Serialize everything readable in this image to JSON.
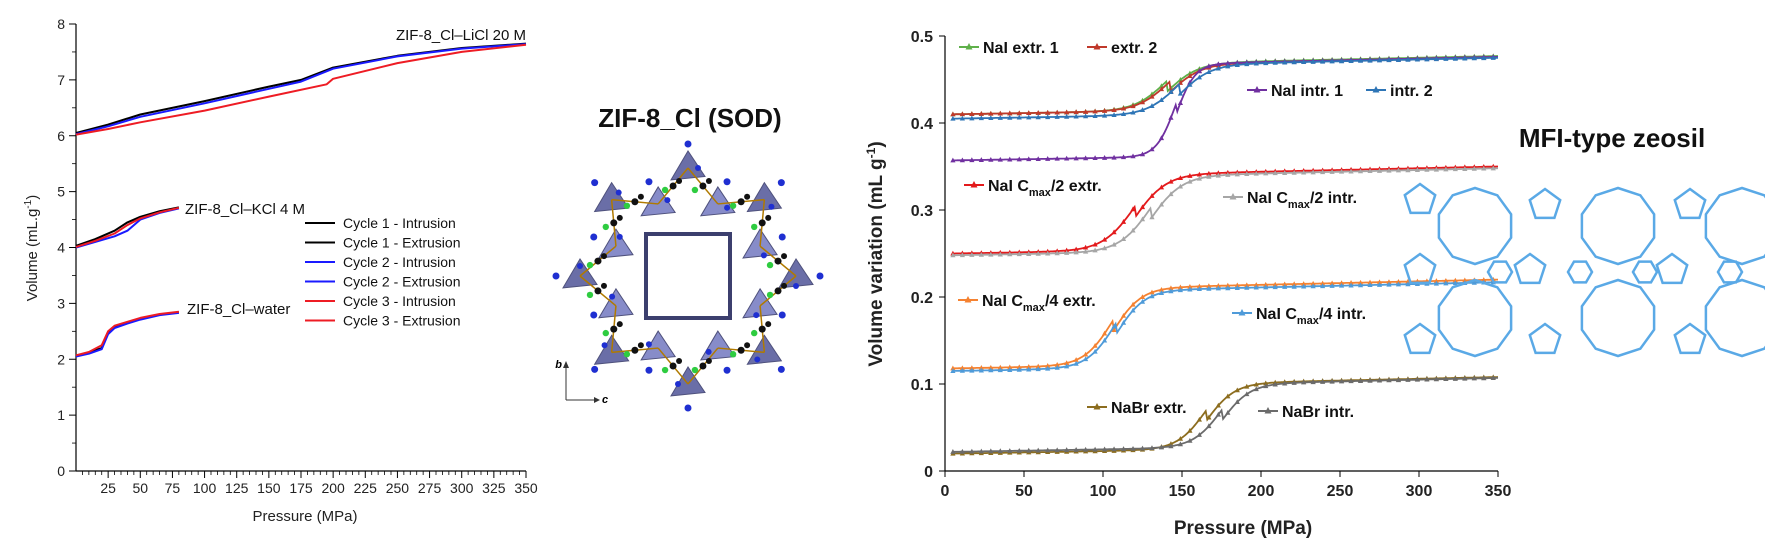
{
  "chart_data": [
    {
      "type": "line",
      "xlabel": "Pressure (MPa)",
      "ylabel": "Volume (mL.g",
      "ylabel_sup": "-1",
      "ylabel_end": ")",
      "xlim": [
        0,
        350
      ],
      "ylim": [
        0,
        8
      ],
      "x_ticks": [
        "25",
        "50",
        "75",
        "100",
        "125",
        "150",
        "175",
        "200",
        "225",
        "250",
        "275",
        "300",
        "325",
        "350"
      ],
      "y_ticks": [
        "0",
        "1",
        "2",
        "3",
        "4",
        "5",
        "6",
        "7",
        "8"
      ],
      "legend": [
        {
          "label": "Cycle 1 - Intrusion",
          "color": "#000000"
        },
        {
          "label": "Cycle 1 - Extrusion",
          "color": "#000000"
        },
        {
          "label": "Cycle 2 - Intrusion",
          "color": "#1a1aff"
        },
        {
          "label": "Cycle 2 - Extrusion",
          "color": "#1a1aff"
        },
        {
          "label": "Cycle 3 - Intrusion",
          "color": "#ee1c24"
        },
        {
          "label": "Cycle 3 - Extrusion",
          "color": "#ee1c24"
        }
      ],
      "annotations": [
        "ZIF-8_Cl–LiCl 20 M",
        "ZIF-8_Cl–KCl 4 M",
        "ZIF-8_Cl–water"
      ],
      "series": [
        {
          "group": "ZIF-8_Cl–LiCl 20 M",
          "color": "#000000",
          "x": [
            0,
            25,
            50,
            100,
            150,
            175,
            200,
            250,
            300,
            350
          ],
          "y": [
            6.05,
            6.2,
            6.38,
            6.62,
            6.88,
            7.0,
            7.22,
            7.43,
            7.57,
            7.65
          ]
        },
        {
          "group": "ZIF-8_Cl–LiCl 20 M",
          "color": "#1a1aff",
          "x": [
            0,
            25,
            50,
            100,
            150,
            175,
            200,
            250,
            300,
            350
          ],
          "y": [
            6.03,
            6.17,
            6.34,
            6.58,
            6.84,
            6.97,
            7.2,
            7.42,
            7.56,
            7.64
          ]
        },
        {
          "group": "ZIF-8_Cl–LiCl 20 M",
          "color": "#ee1c24",
          "x": [
            0,
            25,
            50,
            100,
            150,
            195,
            200,
            250,
            300,
            350
          ],
          "y": [
            6.02,
            6.12,
            6.24,
            6.45,
            6.7,
            6.92,
            7.02,
            7.3,
            7.5,
            7.63
          ]
        },
        {
          "group": "ZIF-8_Cl–KCl 4 M",
          "color": "#000000",
          "x": [
            0,
            15,
            30,
            40,
            50,
            65,
            80
          ],
          "y": [
            4.03,
            4.15,
            4.3,
            4.45,
            4.55,
            4.65,
            4.72
          ]
        },
        {
          "group": "ZIF-8_Cl–KCl 4 M",
          "color": "#1a1aff",
          "x": [
            0,
            15,
            30,
            40,
            50,
            65,
            80
          ],
          "y": [
            4.0,
            4.1,
            4.2,
            4.3,
            4.5,
            4.62,
            4.7
          ]
        },
        {
          "group": "ZIF-8_Cl–KCl 4 M",
          "color": "#ee1c24",
          "x": [
            0,
            15,
            30,
            40,
            50,
            65,
            80
          ],
          "y": [
            4.01,
            4.12,
            4.25,
            4.4,
            4.52,
            4.63,
            4.71
          ]
        },
        {
          "group": "ZIF-8_Cl–water",
          "color": "#000000",
          "x": [
            0,
            10,
            20,
            25,
            30,
            40,
            50,
            65,
            80
          ],
          "y": [
            2.06,
            2.12,
            2.2,
            2.48,
            2.58,
            2.65,
            2.72,
            2.8,
            2.84
          ]
        },
        {
          "group": "ZIF-8_Cl–water",
          "color": "#1a1aff",
          "x": [
            0,
            10,
            20,
            25,
            30,
            40,
            50,
            65,
            80
          ],
          "y": [
            2.05,
            2.1,
            2.18,
            2.45,
            2.56,
            2.64,
            2.71,
            2.79,
            2.83
          ]
        },
        {
          "group": "ZIF-8_Cl–water",
          "color": "#ee1c24",
          "x": [
            0,
            10,
            20,
            25,
            30,
            40,
            50,
            65,
            80
          ],
          "y": [
            2.07,
            2.13,
            2.25,
            2.5,
            2.6,
            2.67,
            2.74,
            2.81,
            2.85
          ]
        }
      ]
    },
    {
      "type": "line",
      "xlabel": "Pressure (MPa)",
      "ylabel": "Volume variation  (mL g",
      "ylabel_sup": "-1",
      "ylabel_end": ")",
      "xlim": [
        0,
        350
      ],
      "ylim": [
        0,
        0.5
      ],
      "x_ticks": [
        "0",
        "50",
        "100",
        "150",
        "200",
        "250",
        "300",
        "350"
      ],
      "y_ticks": [
        "0",
        "0.1",
        "0.2",
        "0.3",
        "0.4",
        "0.5"
      ],
      "series": [
        {
          "name": "NaI extr. 1",
          "color": "#5fb04a",
          "low": 0.41,
          "high": 0.477,
          "mid": 140,
          "width": 10
        },
        {
          "name": "extr. 2",
          "color": "#c0392b",
          "low": 0.41,
          "high": 0.476,
          "mid": 142,
          "width": 10
        },
        {
          "name": "NaI intr. 1",
          "color": "#7030a0",
          "low": 0.357,
          "high": 0.476,
          "mid": 146,
          "width": 6
        },
        {
          "name": "intr. 2",
          "color": "#2e75b6",
          "low": 0.405,
          "high": 0.475,
          "mid": 148,
          "width": 10
        },
        {
          "name": "NaI C",
          "name_sub": "max",
          "name_end": "/2 extr.",
          "color": "#e31a1c",
          "low": 0.25,
          "high": 0.35,
          "mid": 120,
          "width": 10
        },
        {
          "name": "NaI C",
          "name_sub": "max",
          "name_end": "/2 intr.",
          "color": "#a6a6a6",
          "low": 0.248,
          "high": 0.348,
          "mid": 130,
          "width": 10
        },
        {
          "name": "NaI C",
          "name_sub": "max",
          "name_end": "/4 extr.",
          "color": "#f58231",
          "low": 0.118,
          "high": 0.22,
          "mid": 106,
          "width": 9
        },
        {
          "name": "NaI C",
          "name_sub": "max",
          "name_end": "/4 intr.",
          "color": "#4f9bd9",
          "low": 0.115,
          "high": 0.217,
          "mid": 108,
          "width": 9
        },
        {
          "name": "NaBr extr.",
          "color": "#8c6d1f",
          "low": 0.02,
          "high": 0.108,
          "mid": 165,
          "width": 9
        },
        {
          "name": "NaBr intr.",
          "color": "#6b6b6b",
          "low": 0.022,
          "high": 0.107,
          "mid": 175,
          "width": 9
        }
      ]
    }
  ],
  "structure_left": {
    "title": "ZIF-8_Cl (SOD)",
    "axis_b": "b",
    "axis_c": "c"
  },
  "structure_right": {
    "title": "MFI-type zeosil"
  }
}
